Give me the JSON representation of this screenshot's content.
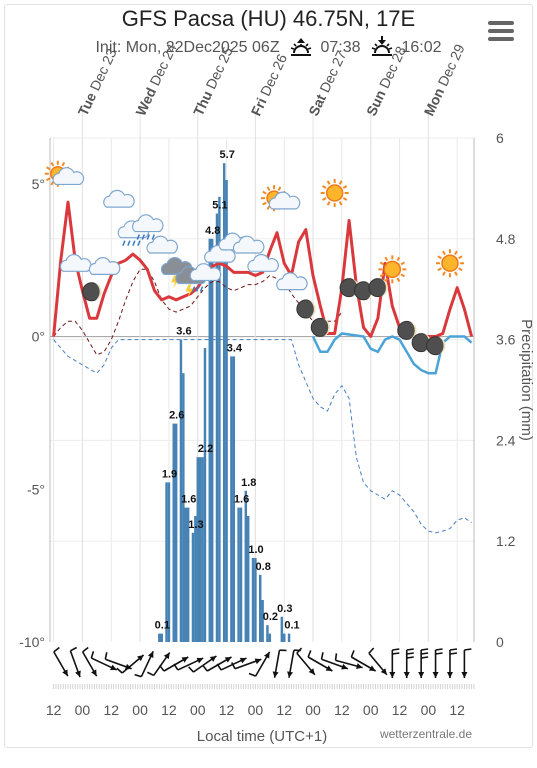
{
  "header": {
    "title": "GFS Pacsa (HU) 46.75N, 17E",
    "init_label": "Init: Mon, 22Dec2025 06Z",
    "sunrise": "07:38",
    "sunset": "16:02"
  },
  "colors": {
    "temperature": "#d9393d",
    "dewpoint": "#6e1818",
    "precip_bars": "#4682b4",
    "min_temp_line": "#4ba3d8",
    "precip_cumulative": "#4a7fc0"
  },
  "chart_data": {
    "type": "bar",
    "days": [
      {
        "dow": "Tue",
        "date": "Dec 23"
      },
      {
        "dow": "Wed",
        "date": "Dec 24"
      },
      {
        "dow": "Thu",
        "date": "Dec 25"
      },
      {
        "dow": "Fri",
        "date": "Dec 26"
      },
      {
        "dow": "Sat",
        "date": "Dec 27"
      },
      {
        "dow": "Sun",
        "date": "Dec 28"
      },
      {
        "dow": "Mon",
        "date": "Dec 29"
      }
    ],
    "x_tick_labels": [
      "12",
      "00",
      "12",
      "00",
      "12",
      "00",
      "12",
      "00",
      "12",
      "00",
      "12",
      "00",
      "12",
      "00",
      "12"
    ],
    "xlabel": "Local time (UTC+1)",
    "temperature_axis": {
      "ticks": [
        "5°",
        "0°",
        "-5°",
        "-10°"
      ],
      "range": [
        -10,
        6.5
      ]
    },
    "precip_axis": {
      "label": "Precipitation (mm)",
      "ticks": [
        "6",
        "4.8",
        "3.6",
        "2.4",
        "1.2",
        "0"
      ],
      "range": [
        0,
        6
      ]
    },
    "precip_labels": [
      {
        "hour": 44,
        "value": "0.1"
      },
      {
        "hour": 47,
        "value": "1.9"
      },
      {
        "hour": 50,
        "value": "2.6"
      },
      {
        "hour": 53,
        "value": "3.6"
      },
      {
        "hour": 55,
        "value": "1.6"
      },
      {
        "hour": 58,
        "value": "1.3"
      },
      {
        "hour": 62,
        "value": "2.2"
      },
      {
        "hour": 65,
        "value": "4.8"
      },
      {
        "hour": 68,
        "value": "5.1"
      },
      {
        "hour": 71,
        "value": "5.7"
      },
      {
        "hour": 74,
        "value": "3.4"
      },
      {
        "hour": 77,
        "value": "1.6"
      },
      {
        "hour": 80,
        "value": "1.8"
      },
      {
        "hour": 83,
        "value": "1.0"
      },
      {
        "hour": 86,
        "value": "0.8"
      },
      {
        "hour": 89,
        "value": "0.2"
      },
      {
        "hour": 95,
        "value": "0.3"
      },
      {
        "hour": 98,
        "value": "0.1"
      }
    ],
    "precip_bars": [
      {
        "hour": 44,
        "value": 0.1
      },
      {
        "hour": 45,
        "value": 0.1
      },
      {
        "hour": 47,
        "value": 1.9
      },
      {
        "hour": 48,
        "value": 1.9
      },
      {
        "hour": 50,
        "value": 2.6
      },
      {
        "hour": 51,
        "value": 2.6
      },
      {
        "hour": 53,
        "value": 3.6
      },
      {
        "hour": 54,
        "value": 3.2
      },
      {
        "hour": 55,
        "value": 1.6
      },
      {
        "hour": 56,
        "value": 1.6
      },
      {
        "hour": 58,
        "value": 1.3
      },
      {
        "hour": 59,
        "value": 1.5
      },
      {
        "hour": 60,
        "value": 2.2
      },
      {
        "hour": 61,
        "value": 2.2
      },
      {
        "hour": 62,
        "value": 2.2
      },
      {
        "hour": 63,
        "value": 3.5
      },
      {
        "hour": 65,
        "value": 4.8
      },
      {
        "hour": 66,
        "value": 4.8
      },
      {
        "hour": 68,
        "value": 5.1
      },
      {
        "hour": 69,
        "value": 5.3
      },
      {
        "hour": 71,
        "value": 5.7
      },
      {
        "hour": 72,
        "value": 5.5
      },
      {
        "hour": 74,
        "value": 3.4
      },
      {
        "hour": 75,
        "value": 3.4
      },
      {
        "hour": 77,
        "value": 1.6
      },
      {
        "hour": 78,
        "value": 1.6
      },
      {
        "hour": 80,
        "value": 1.8
      },
      {
        "hour": 81,
        "value": 1.5
      },
      {
        "hour": 83,
        "value": 1.0
      },
      {
        "hour": 84,
        "value": 1.0
      },
      {
        "hour": 86,
        "value": 0.8
      },
      {
        "hour": 87,
        "value": 0.5
      },
      {
        "hour": 89,
        "value": 0.2
      },
      {
        "hour": 90,
        "value": 0.1
      },
      {
        "hour": 95,
        "value": 0.3
      },
      {
        "hour": 96,
        "value": 0.1
      },
      {
        "hour": 98,
        "value": 0.1
      }
    ],
    "temperature_max": [
      [
        0,
        0
      ],
      [
        3,
        2.5
      ],
      [
        6,
        4.4
      ],
      [
        9,
        2.5
      ],
      [
        12,
        1.5
      ],
      [
        15,
        0.6
      ],
      [
        18,
        0.6
      ],
      [
        21,
        1.4
      ],
      [
        24,
        2
      ],
      [
        27,
        2.4
      ],
      [
        30,
        2.5
      ],
      [
        33,
        2.7
      ],
      [
        36,
        2.5
      ],
      [
        39,
        2.2
      ],
      [
        42,
        1.5
      ],
      [
        45,
        1.2
      ],
      [
        48,
        1.3
      ],
      [
        51,
        1.2
      ],
      [
        54,
        1.3
      ],
      [
        57,
        1.4
      ],
      [
        60,
        1.6
      ],
      [
        63,
        2
      ],
      [
        66,
        2.3
      ],
      [
        69,
        2.4
      ],
      [
        72,
        2.3
      ],
      [
        75,
        2.1
      ],
      [
        78,
        2.1
      ],
      [
        81,
        2.1
      ],
      [
        84,
        2
      ],
      [
        87,
        2.1
      ],
      [
        90,
        2.8
      ],
      [
        93,
        3.4
      ],
      [
        96,
        2.4
      ],
      [
        99,
        2
      ],
      [
        102,
        3.1
      ],
      [
        105,
        3.5
      ],
      [
        108,
        2
      ],
      [
        111,
        1
      ],
      [
        114,
        0.1
      ],
      [
        117,
        0.1
      ],
      [
        120,
        1.6
      ],
      [
        123,
        3.8
      ],
      [
        126,
        1.7
      ],
      [
        129,
        0.3
      ],
      [
        132,
        0
      ],
      [
        135,
        0.6
      ],
      [
        138,
        2.4
      ],
      [
        141,
        1
      ],
      [
        144,
        0.3
      ],
      [
        147,
        0
      ],
      [
        150,
        0
      ],
      [
        153,
        0
      ],
      [
        156,
        0
      ],
      [
        159,
        0
      ],
      [
        162,
        0.1
      ],
      [
        165,
        0.9
      ],
      [
        168,
        1.6
      ],
      [
        171,
        0.9
      ],
      [
        174,
        0
      ]
    ],
    "temperature_min": [
      [
        108,
        0
      ],
      [
        111,
        -0.5
      ],
      [
        114,
        -0.5
      ],
      [
        117,
        -0.1
      ],
      [
        120,
        0.1
      ],
      [
        129,
        0
      ],
      [
        132,
        -0.4
      ],
      [
        135,
        -0.5
      ],
      [
        138,
        -0.1
      ],
      [
        141,
        0
      ],
      [
        144,
        -0.1
      ],
      [
        147,
        -0.5
      ],
      [
        150,
        -0.9
      ],
      [
        153,
        -1.1
      ],
      [
        156,
        -1.2
      ],
      [
        159,
        -1.2
      ],
      [
        162,
        -0.2
      ],
      [
        165,
        0
      ],
      [
        168,
        0
      ],
      [
        171,
        0
      ],
      [
        174,
        -0.2
      ]
    ],
    "dewpoint": [
      [
        0,
        0
      ],
      [
        3,
        0.3
      ],
      [
        6,
        0.5
      ],
      [
        9,
        0.5
      ],
      [
        12,
        0.2
      ],
      [
        15,
        -0.2
      ],
      [
        18,
        -0.6
      ],
      [
        21,
        -0.5
      ],
      [
        24,
        -0.1
      ],
      [
        27,
        0.5
      ],
      [
        30,
        1.2
      ],
      [
        33,
        1.8
      ],
      [
        36,
        2.2
      ],
      [
        39,
        2.2
      ],
      [
        42,
        1.8
      ],
      [
        45,
        1.2
      ],
      [
        48,
        0.9
      ],
      [
        51,
        0.8
      ],
      [
        54,
        0.9
      ],
      [
        57,
        1
      ],
      [
        60,
        1.3
      ],
      [
        63,
        1.6
      ],
      [
        66,
        1.8
      ],
      [
        69,
        1.8
      ],
      [
        72,
        1.6
      ],
      [
        75,
        1.5
      ],
      [
        78,
        1.6
      ],
      [
        81,
        1.7
      ],
      [
        84,
        1.7
      ],
      [
        87,
        1.8
      ],
      [
        90,
        2
      ],
      [
        93,
        1.9
      ],
      [
        96,
        1.8
      ],
      [
        99,
        1.4
      ],
      [
        102,
        1.1
      ],
      [
        105,
        0.8
      ],
      [
        108,
        0.5
      ],
      [
        111,
        0.4
      ],
      [
        114,
        0.5
      ],
      [
        117,
        0.5
      ],
      [
        120,
        0.8
      ]
    ],
    "precip_cumulative": [
      [
        0,
        3.6
      ],
      [
        3,
        3.5
      ],
      [
        6,
        3.4
      ],
      [
        9,
        3.35
      ],
      [
        12,
        3.3
      ],
      [
        15,
        3.25
      ],
      [
        18,
        3.2
      ],
      [
        21,
        3.3
      ],
      [
        24,
        3.5
      ],
      [
        27,
        3.6
      ],
      [
        30,
        3.6
      ],
      [
        99,
        3.6
      ],
      [
        102,
        3.3
      ],
      [
        105,
        3.1
      ],
      [
        108,
        2.9
      ],
      [
        111,
        2.8
      ],
      [
        114,
        2.75
      ],
      [
        117,
        2.95
      ],
      [
        120,
        3.05
      ],
      [
        123,
        2.9
      ],
      [
        126,
        2.2
      ],
      [
        129,
        1.9
      ],
      [
        132,
        1.8
      ],
      [
        135,
        1.75
      ],
      [
        138,
        1.7
      ],
      [
        141,
        1.8
      ],
      [
        144,
        1.75
      ],
      [
        147,
        1.65
      ],
      [
        150,
        1.55
      ],
      [
        153,
        1.4
      ],
      [
        156,
        1.32
      ],
      [
        159,
        1.3
      ],
      [
        162,
        1.32
      ],
      [
        165,
        1.35
      ],
      [
        168,
        1.45
      ],
      [
        171,
        1.48
      ],
      [
        174,
        1.42
      ]
    ],
    "weather_icons": [
      {
        "hour": 3,
        "temp": 5.2,
        "icon": "sun-cloud"
      },
      {
        "hour": 9,
        "temp": 2.3,
        "icon": "cloud"
      },
      {
        "hour": 15,
        "temp": 1.5,
        "icon": "moon-cloud"
      },
      {
        "hour": 21,
        "temp": 2.2,
        "icon": "cloud"
      },
      {
        "hour": 27,
        "temp": 4.4,
        "icon": "cloud"
      },
      {
        "hour": 33,
        "temp": 3.4,
        "icon": "rain-cloud"
      },
      {
        "hour": 39,
        "temp": 3.6,
        "icon": "rain-cloud"
      },
      {
        "hour": 45,
        "temp": 2.9,
        "icon": "cloud"
      },
      {
        "hour": 51,
        "temp": 2.2,
        "icon": "storm-cloud"
      },
      {
        "hour": 57,
        "temp": 1.9,
        "icon": "storm-cloud"
      },
      {
        "hour": 63,
        "temp": 2.0,
        "icon": "cloud"
      },
      {
        "hour": 69,
        "temp": 2.6,
        "icon": "cloud"
      },
      {
        "hour": 75,
        "temp": 3.0,
        "icon": "cloud"
      },
      {
        "hour": 81,
        "temp": 2.9,
        "icon": "cloud"
      },
      {
        "hour": 87,
        "temp": 2.3,
        "icon": "cloud"
      },
      {
        "hour": 93,
        "temp": 4.4,
        "icon": "sun-cloud"
      },
      {
        "hour": 99,
        "temp": 1.7,
        "icon": "cloud"
      },
      {
        "hour": 105,
        "temp": 0.9,
        "icon": "moon"
      },
      {
        "hour": 111,
        "temp": 0.3,
        "icon": "moon"
      },
      {
        "hour": 117,
        "temp": 4.7,
        "icon": "sun"
      },
      {
        "hour": 123,
        "temp": 1.6,
        "icon": "moon"
      },
      {
        "hour": 129,
        "temp": 1.5,
        "icon": "moon"
      },
      {
        "hour": 135,
        "temp": 1.6,
        "icon": "moon"
      },
      {
        "hour": 141,
        "temp": 2.2,
        "icon": "sun"
      },
      {
        "hour": 147,
        "temp": 0.2,
        "icon": "moon"
      },
      {
        "hour": 153,
        "temp": -0.2,
        "icon": "moon"
      },
      {
        "hour": 159,
        "temp": -0.3,
        "icon": "moon"
      },
      {
        "hour": 165,
        "temp": 2.4,
        "icon": "sun"
      }
    ],
    "wind": [
      {
        "hour": 3,
        "dir": 330,
        "barbs": 1
      },
      {
        "hour": 9,
        "dir": 340,
        "barbs": 1
      },
      {
        "hour": 15,
        "dir": 330,
        "barbs": 1
      },
      {
        "hour": 21,
        "dir": 295,
        "barbs": 1
      },
      {
        "hour": 27,
        "dir": 290,
        "barbs": 1
      },
      {
        "hour": 33,
        "dir": 230,
        "barbs": 1
      },
      {
        "hour": 39,
        "dir": 205,
        "barbs": 1
      },
      {
        "hour": 45,
        "dir": 215,
        "barbs": 1
      },
      {
        "hour": 51,
        "dir": 240,
        "barbs": 1
      },
      {
        "hour": 57,
        "dir": 245,
        "barbs": 1
      },
      {
        "hour": 63,
        "dir": 235,
        "barbs": 1
      },
      {
        "hour": 69,
        "dir": 240,
        "barbs": 1
      },
      {
        "hour": 75,
        "dir": 245,
        "barbs": 1
      },
      {
        "hour": 81,
        "dir": 250,
        "barbs": 1
      },
      {
        "hour": 87,
        "dir": 210,
        "barbs": 1
      },
      {
        "hour": 93,
        "dir": 10,
        "barbs": 1
      },
      {
        "hour": 99,
        "dir": 10,
        "barbs": 1
      },
      {
        "hour": 105,
        "dir": 320,
        "barbs": 1
      },
      {
        "hour": 111,
        "dir": 300,
        "barbs": 1
      },
      {
        "hour": 117,
        "dir": 290,
        "barbs": 1
      },
      {
        "hour": 123,
        "dir": 285,
        "barbs": 1
      },
      {
        "hour": 129,
        "dir": 300,
        "barbs": 1
      },
      {
        "hour": 135,
        "dir": 320,
        "barbs": 1
      },
      {
        "hour": 141,
        "dir": 0,
        "barbs": 2
      },
      {
        "hour": 147,
        "dir": 0,
        "barbs": 3
      },
      {
        "hour": 153,
        "dir": 0,
        "barbs": 3
      },
      {
        "hour": 159,
        "dir": 0,
        "barbs": 2
      },
      {
        "hour": 165,
        "dir": 0,
        "barbs": 2
      },
      {
        "hour": 171,
        "dir": 0,
        "barbs": 1
      }
    ]
  },
  "footer": {
    "credit": "wetterzentrale.de"
  }
}
